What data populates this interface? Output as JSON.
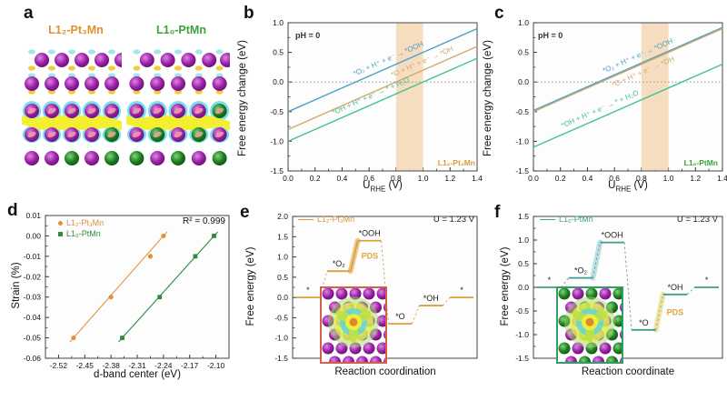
{
  "panels": {
    "a": {
      "letter": "a",
      "structures": [
        {
          "title": "L1₂-Pt₃Mn",
          "color": "#e0912f"
        },
        {
          "title": "L1₀-PtMn",
          "color": "#3aa33a"
        }
      ]
    },
    "b": {
      "letter": "b",
      "annotation": "pH = 0",
      "ylabel": "Free energy change (eV)",
      "xlabel_pre": "U",
      "xlabel_sub": "RHE",
      "xlabel_post": " (V)",
      "material_label": "L1₂-Pt₃Mn",
      "material_color": "#d89b3c"
    },
    "c": {
      "letter": "c",
      "annotation": "pH = 0",
      "ylabel": "Free energy change (eV)",
      "xlabel_pre": "U",
      "xlabel_sub": "RHE",
      "xlabel_post": " (V)",
      "material_label": "L1₀-PtMn",
      "material_color": "#3aa33a"
    },
    "d": {
      "letter": "d",
      "ylabel": "Strain (%)",
      "xlabel": "d-band center (eV)",
      "r2": "R² = 0.999",
      "legend": [
        {
          "label": "L1₂-Pt₃Mn",
          "color": "#e0923a",
          "marker": "circle"
        },
        {
          "label": "L1₀-PtMn",
          "color": "#2e8b3d",
          "marker": "square"
        }
      ]
    },
    "e": {
      "letter": "e",
      "ylabel": "Free energy (eV)",
      "xlabel": "Reaction coordination",
      "legend": "L1₂-Pt₃Mn",
      "legend_color": "#e0923a",
      "u_label": "U = 1.23 V"
    },
    "f": {
      "letter": "f",
      "ylabel": "Free energy (eV)",
      "xlabel": "Reaction coordinate",
      "legend": "L1₀-PtMn",
      "legend_color": "#3f9d8c",
      "u_label": "U = 1.23 V"
    }
  },
  "chart_data": [
    {
      "id": "b",
      "type": "line",
      "title": "",
      "xlabel": "U_RHE (V)",
      "ylabel": "Free energy change (eV)",
      "xlim": [
        0,
        1.4
      ],
      "ylim": [
        -1.5,
        1.0
      ],
      "xticks": [
        0.0,
        0.2,
        0.4,
        0.6,
        0.8,
        1.0,
        1.2,
        1.4
      ],
      "yticks": [
        1.0,
        0.5,
        0.0,
        -0.5,
        -1.0,
        -1.5
      ],
      "xdec": 1,
      "ydec": 1,
      "annotation": "pH = 0",
      "zero_line": true,
      "shaded_band_x": [
        0.8,
        1.0
      ],
      "band_color": "#f5d9b9",
      "series": [
        {
          "name": "*O₂ + H⁺ + e⁻ → *OOH",
          "color": "#4aa2c4",
          "intercept": -0.5,
          "slope": 1.0,
          "label_x": 0.75,
          "label_side": "above"
        },
        {
          "name": "*O + H⁺ + e⁻ → *OH",
          "color": "#d2a96b",
          "intercept": -0.8,
          "slope": 1.0,
          "label_x": 1.0,
          "label_side": "above"
        },
        {
          "name": "*OH + H⁺ + e⁻ → * + H₂O",
          "color": "#45c193",
          "intercept": -1.0,
          "slope": 1.0,
          "label_x": 0.62,
          "label_side": "above"
        }
      ],
      "material_label": "L1₂-Pt₃Mn"
    },
    {
      "id": "c",
      "type": "line",
      "title": "",
      "xlabel": "U_RHE (V)",
      "ylabel": "Free energy change (eV)",
      "xlim": [
        0,
        1.4
      ],
      "ylim": [
        -1.5,
        1.0
      ],
      "xticks": [
        0.0,
        0.2,
        0.4,
        0.6,
        0.8,
        1.0,
        1.2,
        1.4
      ],
      "yticks": [
        1.0,
        0.5,
        0.0,
        -0.5,
        -1.0,
        -1.5
      ],
      "xdec": 1,
      "ydec": 1,
      "annotation": "pH = 0",
      "zero_line": true,
      "shaded_band_x": [
        0.8,
        1.0
      ],
      "band_color": "#f5d9b9",
      "series": [
        {
          "name": "*O₂ + H⁺ + e⁻ → *OOH",
          "color": "#4aa2c4",
          "intercept": -0.48,
          "slope": 1.0,
          "label_x": 0.78,
          "label_side": "above"
        },
        {
          "name": "*O + H⁺ + e⁻ → *OH",
          "color": "#d2a96b",
          "intercept": -0.5,
          "slope": 1.0,
          "label_x": 0.82,
          "label_side": "below"
        },
        {
          "name": "*OH + H⁺ + e⁻ → * + H₂O",
          "color": "#45c193",
          "intercept": -1.1,
          "slope": 1.0,
          "label_x": 0.5,
          "label_side": "above"
        }
      ],
      "material_label": "L1₀-PtMn"
    },
    {
      "id": "d",
      "type": "scatter",
      "title": "",
      "xlabel": "d-band center (eV)",
      "ylabel": "Strain (%)",
      "xlim": [
        -2.555,
        -2.065
      ],
      "ylim": [
        -0.06,
        0.01
      ],
      "xticks": [
        -2.52,
        -2.45,
        -2.38,
        -2.31,
        -2.24,
        -2.17,
        -2.1
      ],
      "yticks": [
        0.01,
        0.0,
        -0.01,
        -0.02,
        -0.03,
        -0.04,
        -0.05,
        -0.06
      ],
      "xdec": 2,
      "ydec": 2,
      "annotation": "R² = 0.999",
      "series": [
        {
          "name": "L1₂-Pt₃Mn",
          "color": "#e0923a",
          "marker": "circle",
          "points": [
            [
              -2.48,
              -0.05
            ],
            [
              -2.38,
              -0.03
            ],
            [
              -2.275,
              -0.01
            ],
            [
              -2.24,
              0.0
            ]
          ]
        },
        {
          "name": "L1₀-PtMn",
          "color": "#2e8b3d",
          "marker": "square",
          "points": [
            [
              -2.35,
              -0.05
            ],
            [
              -2.25,
              -0.03
            ],
            [
              -2.155,
              -0.01
            ],
            [
              -2.105,
              0.0
            ]
          ]
        }
      ]
    },
    {
      "id": "e",
      "type": "step",
      "title": "",
      "xlabel": "Reaction coordination",
      "ylabel": "Free energy (eV)",
      "ylim": [
        -1.5,
        2.0
      ],
      "yticks": [
        2.0,
        1.5,
        1.0,
        0.5,
        0.0,
        -0.5,
        -1.0,
        -1.5
      ],
      "ydec": 1,
      "legend": "L1₂-Pt₃Mn",
      "annotation": "U = 1.23 V",
      "color": "#dd9f3c",
      "connector_color": "#d5ad68",
      "steps": [
        {
          "label": "*",
          "e": 0.0
        },
        {
          "label": "*O₂",
          "e": 0.65
        },
        {
          "label": "*OOH",
          "e": 1.4
        },
        {
          "label": "*O",
          "e": -0.65
        },
        {
          "label": "*OH",
          "e": -0.2
        },
        {
          "label": "*",
          "e": 0.0
        }
      ],
      "pds": {
        "from": 1,
        "to": 2,
        "label": "PDS",
        "color": "#e2a53e",
        "glow": "#ecc27d",
        "solid": true
      }
    },
    {
      "id": "f",
      "type": "step",
      "title": "",
      "xlabel": "Reaction coordinate",
      "ylabel": "Free energy (eV)",
      "ylim": [
        -1.5,
        1.5
      ],
      "yticks": [
        1.5,
        1.0,
        0.5,
        0.0,
        -0.5,
        -1.0,
        -1.5
      ],
      "ydec": 1,
      "legend": "L1₀-PtMn",
      "annotation": "U = 1.23 V",
      "color": "#3f9d8c",
      "connector_color": "#7fa49e",
      "steps": [
        {
          "label": "*",
          "e": 0.0
        },
        {
          "label": "*O₂",
          "e": 0.2
        },
        {
          "label": "*OOH",
          "e": 0.95
        },
        {
          "label": "*O",
          "e": -0.9
        },
        {
          "label": "*OH",
          "e": -0.15
        },
        {
          "label": "*",
          "e": 0.0
        }
      ],
      "highlights": [
        {
          "from": 1,
          "to": 2,
          "color": "#b5dce4"
        }
      ],
      "pds": {
        "from": 3,
        "to": 4,
        "label": "PDS",
        "color": "#e2a53e",
        "glow": "#f0e292",
        "solid": false
      }
    }
  ],
  "art": {
    "atom_colors": {
      "pt": "#9b1fa8",
      "mn": "#1e7d1e"
    },
    "inset_border_e": "#d4604a",
    "inset_border_f": "#2f9e68"
  }
}
